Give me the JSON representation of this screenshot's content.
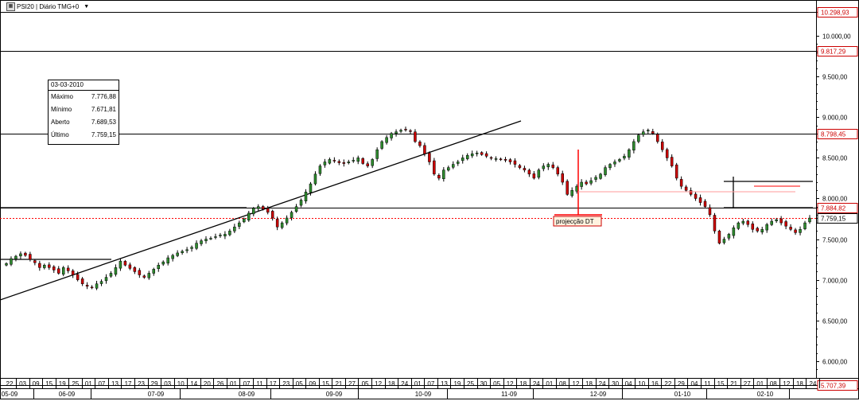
{
  "window": {
    "title": "PSI20 | Diário TMG+0",
    "icon": "chart-window-icon",
    "menu_icon": "dropdown-arrow-icon"
  },
  "info_box": {
    "date": "03-03-2010",
    "rows": [
      {
        "label": "Máximo",
        "value": "7.776,88"
      },
      {
        "label": "Mínimo",
        "value": "7.671,81"
      },
      {
        "label": "Aberto",
        "value": "7.689,53"
      },
      {
        "label": "Último",
        "value": "7.759,15"
      }
    ]
  },
  "annotation": {
    "label": "projecção DT"
  },
  "colors": {
    "up": "#2e8b2e",
    "down": "#cc0000",
    "price_line": "#ff0000",
    "level_label": "#cc0000"
  },
  "chart_data": {
    "type": "candlestick",
    "y_ticks": [
      "10.000,00",
      "9.500,00",
      "9.000,00",
      "8.500,00",
      "8.000,00",
      "7.500,00",
      "7.000,00",
      "6.500,00",
      "6.000,00"
    ],
    "ylim": [
      5707.39,
      10298.93
    ],
    "levels": [
      {
        "label": "10.298,93",
        "value": 10298.93
      },
      {
        "label": "9.817,29",
        "value": 9817.29
      },
      {
        "label": "8.798,45",
        "value": 8798.45
      },
      {
        "label": "7.884,82",
        "value": 7884.82
      },
      {
        "label": "7.759,15",
        "value": 7759.15,
        "current": true
      },
      {
        "label": "5.707,39",
        "value": 5707.39
      }
    ],
    "x_day_ticks": [
      "22",
      "03",
      "09",
      "15",
      "19",
      "25",
      "01",
      "07",
      "13",
      "17",
      "23",
      "29",
      "03",
      "10",
      "14",
      "20",
      "26",
      "01",
      "07",
      "11",
      "17",
      "23",
      "05",
      "09",
      "15",
      "21",
      "27",
      "05",
      "12",
      "18",
      "24",
      "01",
      "07",
      "13",
      "19",
      "25",
      "30",
      "05",
      "12",
      "18",
      "24",
      "01",
      "08",
      "12",
      "18",
      "24",
      "30",
      "04",
      "10",
      "16",
      "22",
      "29",
      "04",
      "11",
      "15",
      "21",
      "27",
      "01",
      "08",
      "12",
      "18",
      "24"
    ],
    "x_month_ticks": [
      "05-09",
      "06-09",
      "07-09",
      "08-09",
      "09-09",
      "10-09",
      "11-09",
      "12-09",
      "01-10",
      "02-10"
    ],
    "closes": [
      7200,
      7260,
      7290,
      7320,
      7300,
      7250,
      7210,
      7150,
      7180,
      7150,
      7120,
      7080,
      7150,
      7110,
      7060,
      7000,
      6950,
      6920,
      6900,
      6950,
      6980,
      7030,
      7080,
      7150,
      7230,
      7180,
      7140,
      7100,
      7060,
      7030,
      7080,
      7130,
      7180,
      7220,
      7270,
      7300,
      7330,
      7350,
      7370,
      7400,
      7450,
      7480,
      7500,
      7510,
      7530,
      7550,
      7560,
      7600,
      7650,
      7700,
      7750,
      7820,
      7880,
      7900,
      7870,
      7830,
      7760,
      7650,
      7700,
      7760,
      7830,
      7900,
      7980,
      8080,
      8180,
      8300,
      8400,
      8450,
      8480,
      8460,
      8440,
      8430,
      8450,
      8470,
      8500,
      8430,
      8400,
      8480,
      8600,
      8700,
      8750,
      8800,
      8820,
      8840,
      8850,
      8830,
      8700,
      8650,
      8550,
      8450,
      8300,
      8250,
      8350,
      8380,
      8420,
      8450,
      8500,
      8530,
      8550,
      8560,
      8540,
      8520,
      8500,
      8490,
      8480,
      8470,
      8450,
      8420,
      8380,
      8350,
      8300,
      8250,
      8350,
      8400,
      8420,
      8380,
      8300,
      8200,
      8050,
      8100,
      8150,
      8200,
      8180,
      8220,
      8260,
      8300,
      8380,
      8420,
      8450,
      8480,
      8520,
      8600,
      8700,
      8780,
      8820,
      8840,
      8800,
      8700,
      8600,
      8500,
      8400,
      8250,
      8150,
      8100,
      8050,
      8000,
      7950,
      7900,
      7800,
      7600,
      7450,
      7500,
      7560,
      7640,
      7700,
      7720,
      7680,
      7620,
      7600,
      7620,
      7680,
      7720,
      7740,
      7700,
      7660,
      7620,
      7580,
      7620,
      7700,
      7759
    ]
  }
}
